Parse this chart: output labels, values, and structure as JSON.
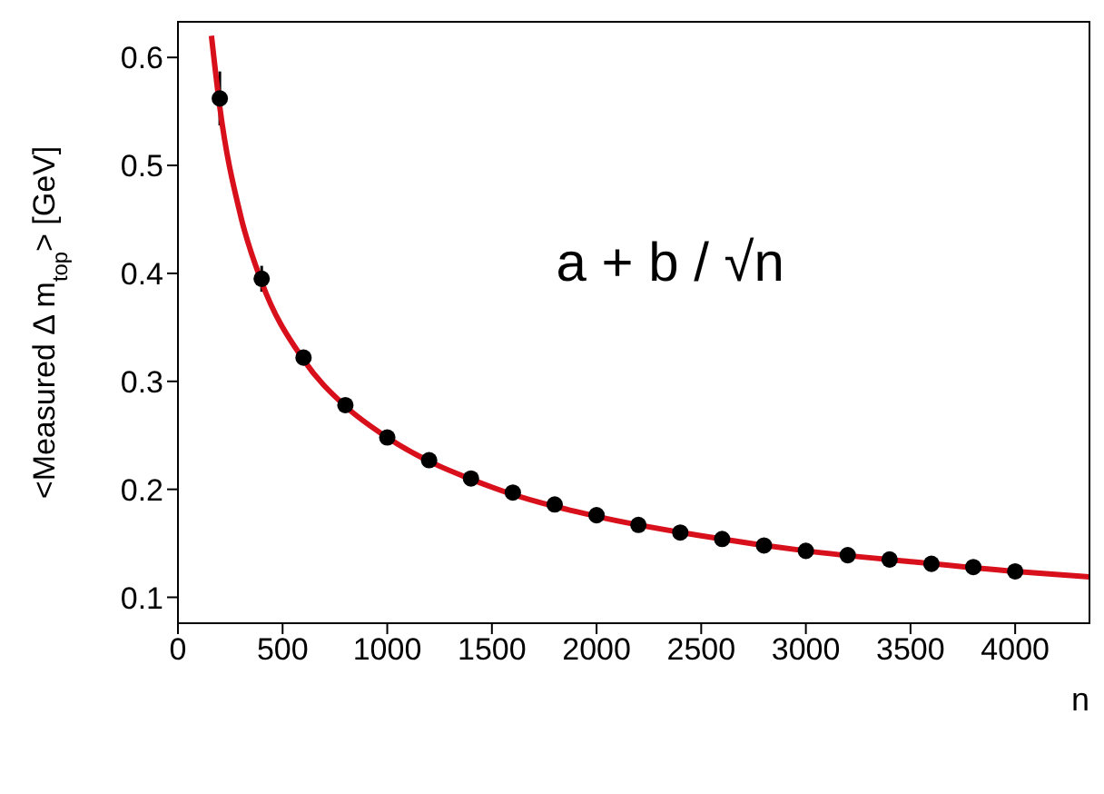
{
  "chart_data": {
    "type": "scatter",
    "xlabel": "n",
    "ylabel": "<Measured Δ m$_{top}$> [GeV]",
    "annotations": [
      "a + b / √n"
    ],
    "xlim": [
      0,
      4355
    ],
    "xticks": [
      0,
      500,
      1000,
      1500,
      2000,
      2500,
      3000,
      3500,
      4000
    ],
    "ylim": [
      0.076,
      0.633
    ],
    "yticks": [
      0.1,
      0.2,
      0.3,
      0.4,
      0.5,
      0.6
    ],
    "series": [
      {
        "marker": "circle",
        "color": "#000000",
        "x": [
          200,
          400,
          600,
          800,
          1000,
          1200,
          1400,
          1600,
          1800,
          2000,
          2200,
          2400,
          2600,
          2800,
          3000,
          3200,
          3400,
          3600,
          3800,
          4000
        ],
        "values": [
          0.562,
          0.395,
          0.322,
          0.278,
          0.248,
          0.227,
          0.21,
          0.197,
          0.186,
          0.176,
          0.167,
          0.16,
          0.154,
          0.148,
          0.143,
          0.139,
          0.135,
          0.131,
          0.128,
          0.124
        ],
        "errors": [
          0.025,
          0.012,
          0.006,
          null,
          null,
          null,
          null,
          null,
          null,
          null,
          null,
          null,
          null,
          null,
          null,
          null,
          null,
          null,
          null,
          null
        ]
      },
      {
        "type": "line",
        "color": "#d8101c",
        "x": [
          160,
          200,
          300,
          400,
          600,
          800,
          1000,
          1500,
          2000,
          2500,
          3000,
          3500,
          4000,
          4355
        ],
        "values": [
          0.62,
          0.554,
          0.453,
          0.392,
          0.32,
          0.277,
          0.248,
          0.202,
          0.175,
          0.157,
          0.143,
          0.133,
          0.124,
          0.119
        ]
      }
    ]
  }
}
